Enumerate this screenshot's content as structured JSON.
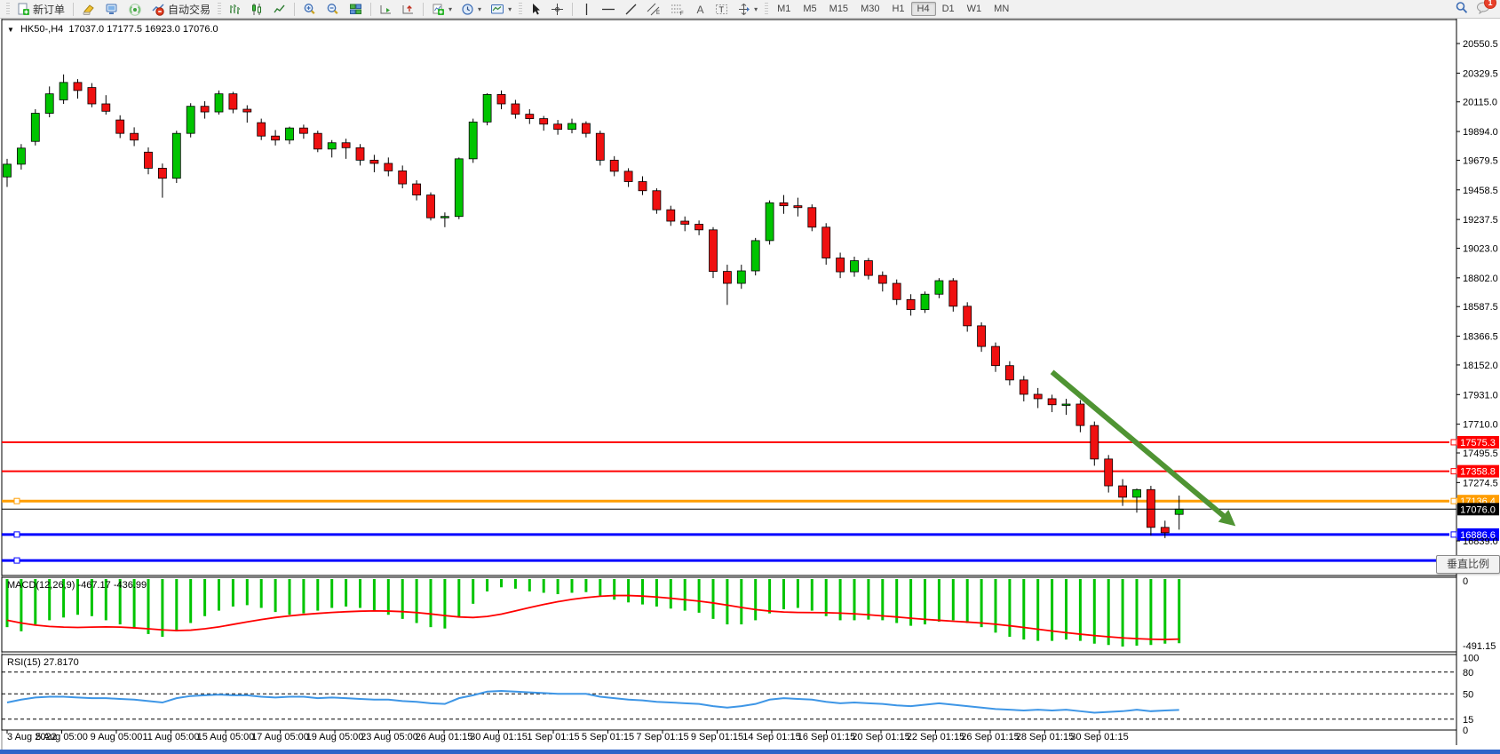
{
  "toolbar": {
    "new_order_label": "新订单",
    "autotrade_label": "自动交易",
    "timeframes": [
      "M1",
      "M5",
      "M15",
      "M30",
      "H1",
      "H4",
      "D1",
      "W1",
      "MN"
    ],
    "active_timeframe": "H4",
    "chat_badge": "1"
  },
  "chart_header": {
    "symbol": "HK50-,H4",
    "ohlc": "17037.0 17177.5 16923.0 17076.0"
  },
  "panes": {
    "macd_label": "MACD(12,26,9)",
    "macd_values": "-467.17 -436.99",
    "macd_axis": [
      "0",
      "-491.15"
    ],
    "rsi_label": "RSI(15) 27.8170",
    "rsi_axis": [
      "100",
      "80",
      "50",
      "15",
      "0"
    ]
  },
  "tooltip": {
    "text": "垂直比例"
  },
  "colors": {
    "bull": "#00c400",
    "bear": "#ef1010",
    "wick": "#000000",
    "macd_hist": "#00c400",
    "macd_signal": "#ff0000",
    "rsi_line": "#3e96e6",
    "red_line": "#ff0000",
    "orange_line": "#ff9d00",
    "blue_line": "#0000ff",
    "bid_line": "#000000",
    "arrow": "#4f9433"
  },
  "chart_data": {
    "type": "candlestick",
    "symbol": "HK50-",
    "timeframe": "H4",
    "title": "HK50-,H4 17037.0 17177.5 16923.0 17076.0",
    "current_price": {
      "price": 17076.0,
      "label": "17076.0"
    },
    "price_axis_ticks": [
      "20550.5",
      "20329.5",
      "20115.0",
      "19894.0",
      "19679.5",
      "19458.5",
      "19237.5",
      "19023.0",
      "18802.0",
      "18587.5",
      "18366.5",
      "18152.0",
      "17931.0",
      "17710.0",
      "17495.5",
      "17274.5",
      "16839.0"
    ],
    "time_labels": [
      "3 Aug 2022",
      "5 Aug 05:00",
      "9 Aug 05:00",
      "11 Aug 05:00",
      "15 Aug 05:00",
      "17 Aug 05:00",
      "19 Aug 05:00",
      "23 Aug 05:00",
      "26 Aug 01:15",
      "30 Aug 01:15",
      "1 Sep 01:15",
      "5 Sep 01:15",
      "7 Sep 01:15",
      "9 Sep 01:15",
      "14 Sep 01:15",
      "16 Sep 01:15",
      "20 Sep 01:15",
      "22 Sep 01:15",
      "26 Sep 01:15",
      "28 Sep 01:15",
      "30 Sep 01:15"
    ],
    "hlines": [
      {
        "price": 17575.3,
        "label": "17575.3",
        "color": "#ff0000",
        "width": 2,
        "left_handle": false
      },
      {
        "price": 17358.8,
        "label": "17358.8",
        "color": "#ff0000",
        "width": 2,
        "left_handle": false
      },
      {
        "price": 17136.4,
        "label": "17136.4",
        "color": "#ff9d00",
        "width": 3,
        "left_handle": true
      },
      {
        "price": 16886.6,
        "label": "16886.6",
        "color": "#0000ff",
        "width": 3,
        "left_handle": true
      },
      {
        "price": 16693.0,
        "label": "",
        "color": "#0000ff",
        "width": 3,
        "left_handle": true
      }
    ],
    "arrow": {
      "from": {
        "bar": 74,
        "price": 18100
      },
      "to": {
        "bar": 87,
        "price": 16950
      }
    },
    "candles": [
      [
        19555,
        19690,
        19480,
        19650
      ],
      [
        19650,
        19800,
        19610,
        19770
      ],
      [
        19820,
        20060,
        19790,
        20030
      ],
      [
        20030,
        20230,
        20000,
        20175
      ],
      [
        20130,
        20320,
        20100,
        20260
      ],
      [
        20260,
        20285,
        20140,
        20200
      ],
      [
        20222,
        20255,
        20075,
        20100
      ],
      [
        20100,
        20165,
        20020,
        20045
      ],
      [
        19980,
        20015,
        19845,
        19880
      ],
      [
        19880,
        19925,
        19785,
        19830
      ],
      [
        19740,
        19775,
        19575,
        19620
      ],
      [
        19620,
        19655,
        19400,
        19545
      ],
      [
        19545,
        19900,
        19510,
        19880
      ],
      [
        19880,
        20105,
        19850,
        20082
      ],
      [
        20082,
        20120,
        19990,
        20040
      ],
      [
        20040,
        20200,
        20020,
        20175
      ],
      [
        20175,
        20190,
        20030,
        20060
      ],
      [
        20060,
        20090,
        19960,
        20040
      ],
      [
        19960,
        19990,
        19830,
        19860
      ],
      [
        19860,
        19905,
        19790,
        19830
      ],
      [
        19830,
        19930,
        19800,
        19920
      ],
      [
        19920,
        19945,
        19840,
        19880
      ],
      [
        19880,
        19900,
        19740,
        19763
      ],
      [
        19763,
        19830,
        19700,
        19810
      ],
      [
        19810,
        19840,
        19690,
        19773
      ],
      [
        19773,
        19800,
        19640,
        19680
      ],
      [
        19680,
        19720,
        19590,
        19656
      ],
      [
        19656,
        19700,
        19560,
        19600
      ],
      [
        19600,
        19640,
        19470,
        19503
      ],
      [
        19503,
        19530,
        19380,
        19420
      ],
      [
        19420,
        19440,
        19230,
        19250
      ],
      [
        19250,
        19290,
        19180,
        19260
      ],
      [
        19260,
        19700,
        19240,
        19690
      ],
      [
        19690,
        19990,
        19660,
        19965
      ],
      [
        19965,
        20180,
        19940,
        20170
      ],
      [
        20170,
        20200,
        20060,
        20100
      ],
      [
        20100,
        20130,
        19990,
        20023
      ],
      [
        20023,
        20060,
        19950,
        19990
      ],
      [
        19990,
        20010,
        19900,
        19949
      ],
      [
        19949,
        19980,
        19870,
        19910
      ],
      [
        19910,
        19990,
        19880,
        19954
      ],
      [
        19954,
        19970,
        19850,
        19880
      ],
      [
        19880,
        19900,
        19640,
        19680
      ],
      [
        19680,
        19710,
        19560,
        19597
      ],
      [
        19597,
        19620,
        19480,
        19520
      ],
      [
        19520,
        19560,
        19420,
        19452
      ],
      [
        19452,
        19470,
        19280,
        19310
      ],
      [
        19310,
        19340,
        19190,
        19225
      ],
      [
        19225,
        19260,
        19150,
        19202
      ],
      [
        19202,
        19230,
        19120,
        19160
      ],
      [
        19160,
        19180,
        18800,
        18850
      ],
      [
        18850,
        18900,
        18600,
        18761
      ],
      [
        18761,
        18900,
        18720,
        18854
      ],
      [
        18854,
        19100,
        18820,
        19080
      ],
      [
        19080,
        19380,
        19050,
        19362
      ],
      [
        19362,
        19420,
        19280,
        19340
      ],
      [
        19340,
        19400,
        19260,
        19326
      ],
      [
        19326,
        19350,
        19150,
        19180
      ],
      [
        19180,
        19210,
        18900,
        18950
      ],
      [
        18950,
        18990,
        18800,
        18847
      ],
      [
        18847,
        18960,
        18810,
        18930
      ],
      [
        18930,
        18950,
        18790,
        18820
      ],
      [
        18820,
        18850,
        18700,
        18761
      ],
      [
        18761,
        18790,
        18600,
        18640
      ],
      [
        18640,
        18680,
        18520,
        18565
      ],
      [
        18565,
        18700,
        18540,
        18680
      ],
      [
        18680,
        18800,
        18650,
        18781
      ],
      [
        18781,
        18800,
        18550,
        18590
      ],
      [
        18590,
        18620,
        18400,
        18444
      ],
      [
        18444,
        18470,
        18250,
        18290
      ],
      [
        18290,
        18320,
        18100,
        18147
      ],
      [
        18147,
        18180,
        18000,
        18040
      ],
      [
        18040,
        18070,
        17880,
        17933
      ],
      [
        17933,
        17980,
        17830,
        17900
      ],
      [
        17900,
        17930,
        17800,
        17855
      ],
      [
        17855,
        17900,
        17780,
        17860
      ],
      [
        17860,
        17890,
        17650,
        17700
      ],
      [
        17700,
        17730,
        17400,
        17450
      ],
      [
        17450,
        17480,
        17200,
        17250
      ],
      [
        17250,
        17300,
        17100,
        17165
      ],
      [
        17165,
        17230,
        17050,
        17222
      ],
      [
        17222,
        17250,
        16880,
        16940
      ],
      [
        16940,
        16990,
        16860,
        16900
      ],
      [
        17037,
        17177.5,
        16923,
        17076
      ]
    ],
    "macd": {
      "label": "MACD(12,26,9)",
      "main_value": -467.17,
      "signal_value": -436.99,
      "ylim": [
        0,
        -491.15
      ],
      "histogram": [
        -350,
        -380,
        -330,
        -300,
        -280,
        -260,
        -270,
        -300,
        -330,
        -360,
        -400,
        -420,
        -380,
        -320,
        -270,
        -230,
        -200,
        -190,
        -210,
        -240,
        -260,
        -250,
        -230,
        -210,
        -200,
        -210,
        -230,
        -260,
        -290,
        -320,
        -350,
        -360,
        -280,
        -180,
        -90,
        -60,
        -70,
        -90,
        -100,
        -110,
        -100,
        -95,
        -120,
        -150,
        -170,
        -185,
        -200,
        -215,
        -230,
        -245,
        -290,
        -330,
        -330,
        -300,
        -250,
        -220,
        -210,
        -230,
        -270,
        -300,
        -300,
        -295,
        -300,
        -320,
        -340,
        -330,
        -310,
        -300,
        -320,
        -350,
        -390,
        -420,
        -440,
        -450,
        -450,
        -440,
        -450,
        -470,
        -480,
        -491,
        -485,
        -480,
        -470,
        -467
      ],
      "signal": [
        -300,
        -320,
        -335,
        -345,
        -350,
        -352,
        -350,
        -348,
        -350,
        -355,
        -362,
        -370,
        -375,
        -372,
        -362,
        -348,
        -330,
        -312,
        -295,
        -280,
        -268,
        -258,
        -250,
        -243,
        -238,
        -234,
        -232,
        -233,
        -237,
        -244,
        -254,
        -266,
        -276,
        -280,
        -272,
        -255,
        -232,
        -208,
        -185,
        -165,
        -148,
        -135,
        -125,
        -120,
        -120,
        -124,
        -131,
        -140,
        -150,
        -161,
        -174,
        -190,
        -207,
        -222,
        -233,
        -240,
        -243,
        -244,
        -245,
        -248,
        -253,
        -260,
        -268,
        -276,
        -285,
        -293,
        -300,
        -307,
        -313,
        -320,
        -329,
        -340,
        -352,
        -365,
        -378,
        -390,
        -401,
        -411,
        -420,
        -428,
        -434,
        -438,
        -440,
        -437
      ]
    },
    "rsi": {
      "label": "RSI(15)",
      "value": 27.817,
      "levels": [
        80,
        50,
        15
      ],
      "values": [
        38,
        42,
        45,
        46,
        46,
        45,
        44,
        44,
        43,
        42,
        40,
        38,
        44,
        47,
        48,
        49,
        48,
        48,
        46,
        45,
        46,
        46,
        44,
        45,
        44,
        43,
        42,
        42,
        40,
        39,
        37,
        36,
        44,
        48,
        53,
        54,
        53,
        52,
        51,
        50,
        50,
        50,
        46,
        44,
        42,
        41,
        39,
        38,
        37,
        36,
        33,
        31,
        33,
        36,
        42,
        44,
        43,
        42,
        39,
        37,
        38,
        37,
        36,
        34,
        33,
        35,
        37,
        35,
        33,
        31,
        29,
        28,
        27,
        28,
        27,
        28,
        26,
        24,
        25,
        26,
        28,
        26,
        27,
        27.8
      ]
    }
  }
}
